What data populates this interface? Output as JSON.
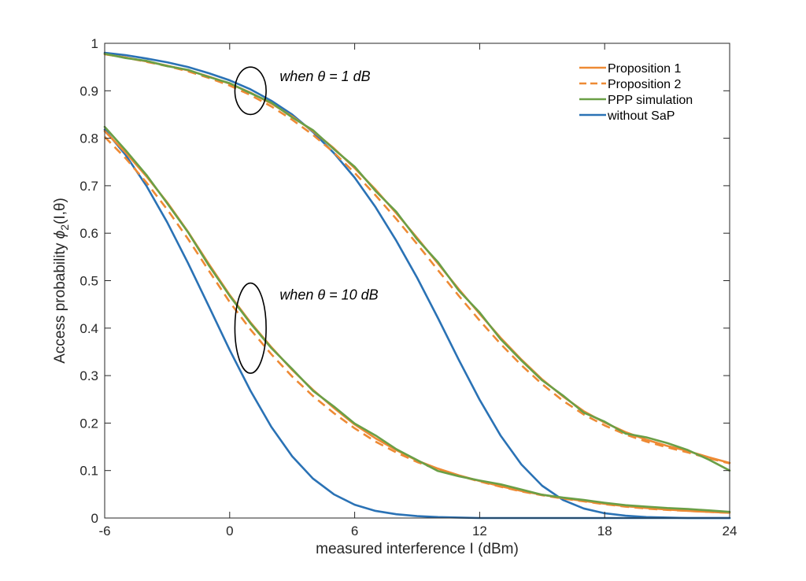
{
  "chart_data": {
    "type": "line",
    "xlabel": "measured interference I (dBm)",
    "ylabel_parts": {
      "prefix": "Access probability ",
      "phi": "ϕ",
      "subscript": "2",
      "args": "(I,θ)"
    },
    "xlim": [
      -6,
      24
    ],
    "ylim": [
      0,
      1
    ],
    "xticks": [
      -6,
      0,
      6,
      12,
      18,
      24
    ],
    "xtick_labels": [
      "-6",
      "0",
      "6",
      "12",
      "18",
      "24"
    ],
    "yticks": [
      0,
      0.1,
      0.2,
      0.3,
      0.4,
      0.5,
      0.6,
      0.7,
      0.8,
      0.9,
      1
    ],
    "ytick_labels": [
      "0",
      "0.1",
      "0.2",
      "0.3",
      "0.4",
      "0.5",
      "0.6",
      "0.7",
      "0.8",
      "0.9",
      "1"
    ],
    "grid": false,
    "legend_position": "top-right",
    "legend": [
      {
        "label": "Proposition 1",
        "color": "#EE8A34",
        "dash": "solid"
      },
      {
        "label": "Proposition 2",
        "color": "#EE8A34",
        "dash": "dashed"
      },
      {
        "label": "PPP simulation",
        "color": "#6A9F46",
        "dash": "solid"
      },
      {
        "label": "without SaP",
        "color": "#2A72B5",
        "dash": "solid"
      }
    ],
    "annotations": [
      {
        "text": "when θ = 1 dB",
        "ellipse_center": [
          1,
          0.9
        ],
        "ellipse_rx": 0.75,
        "ellipse_ry": 0.05,
        "text_anchor": [
          2.4,
          0.93
        ]
      },
      {
        "text": "when θ = 10 dB",
        "ellipse_center": [
          1,
          0.4
        ],
        "ellipse_rx": 0.75,
        "ellipse_ry": 0.095,
        "text_anchor": [
          2.4,
          0.47
        ]
      }
    ],
    "series": [
      {
        "group": "theta_1dB",
        "style": "Proposition 1",
        "x": [
          -6,
          -5,
          -4,
          -3,
          -2,
          -1,
          0,
          1,
          2,
          3,
          4,
          5,
          6,
          7,
          8,
          9,
          10,
          11,
          12,
          13,
          14,
          15,
          16,
          17,
          18,
          19,
          20,
          21,
          22,
          23,
          24
        ],
        "y": [
          0.977,
          0.97,
          0.962,
          0.953,
          0.943,
          0.93,
          0.915,
          0.896,
          0.873,
          0.846,
          0.815,
          0.779,
          0.737,
          0.692,
          0.642,
          0.59,
          0.536,
          0.482,
          0.43,
          0.38,
          0.334,
          0.292,
          0.256,
          0.225,
          0.201,
          0.181,
          0.165,
          0.152,
          0.141,
          0.128,
          0.116
        ]
      },
      {
        "group": "theta_1dB",
        "style": "Proposition 2",
        "x": [
          -6,
          -5,
          -4,
          -3,
          -2,
          -1,
          0,
          1,
          2,
          3,
          4,
          5,
          6,
          7,
          8,
          9,
          10,
          11,
          12,
          13,
          14,
          15,
          16,
          17,
          18,
          19,
          20,
          21,
          22,
          23,
          24
        ],
        "y": [
          0.977,
          0.97,
          0.961,
          0.952,
          0.941,
          0.927,
          0.911,
          0.891,
          0.867,
          0.839,
          0.807,
          0.77,
          0.727,
          0.68,
          0.63,
          0.577,
          0.522,
          0.468,
          0.416,
          0.367,
          0.322,
          0.282,
          0.247,
          0.218,
          0.195,
          0.176,
          0.161,
          0.149,
          0.138,
          0.126,
          0.115
        ]
      },
      {
        "group": "theta_1dB",
        "style": "PPP simulation",
        "x": [
          -6,
          -5,
          -4,
          -3,
          -2,
          -1,
          0,
          1,
          2,
          3,
          4,
          5,
          6,
          7,
          8,
          9,
          10,
          11,
          12,
          13,
          14,
          15,
          16,
          17,
          18,
          19,
          20,
          21,
          22,
          23,
          24
        ],
        "y": [
          0.978,
          0.969,
          0.963,
          0.952,
          0.944,
          0.929,
          0.916,
          0.895,
          0.875,
          0.844,
          0.817,
          0.777,
          0.74,
          0.689,
          0.645,
          0.587,
          0.539,
          0.479,
          0.433,
          0.377,
          0.332,
          0.29,
          0.258,
          0.222,
          0.203,
          0.178,
          0.17,
          0.158,
          0.143,
          0.123,
          0.1
        ]
      },
      {
        "group": "theta_1dB",
        "style": "without SaP",
        "x": [
          -6,
          -5,
          -4,
          -3,
          -2,
          -1,
          0,
          1,
          2,
          3,
          4,
          5,
          6,
          7,
          8,
          9,
          10,
          11,
          12,
          13,
          14,
          15,
          16,
          17,
          18,
          19,
          20,
          21,
          22,
          23,
          24
        ],
        "y": [
          0.98,
          0.975,
          0.968,
          0.96,
          0.95,
          0.937,
          0.922,
          0.903,
          0.879,
          0.85,
          0.813,
          0.769,
          0.717,
          0.655,
          0.584,
          0.506,
          0.421,
          0.333,
          0.249,
          0.174,
          0.113,
          0.068,
          0.038,
          0.02,
          0.01,
          0.005,
          0.002,
          0.001,
          0.0,
          0.0,
          0.0
        ]
      },
      {
        "group": "theta_10dB",
        "style": "Proposition 1",
        "x": [
          -6,
          -5,
          -4,
          -3,
          -2,
          -1,
          0,
          1,
          2,
          3,
          4,
          5,
          6,
          7,
          8,
          9,
          10,
          11,
          12,
          13,
          14,
          15,
          16,
          17,
          18,
          19,
          20,
          21,
          22,
          23,
          24
        ],
        "y": [
          0.815,
          0.77,
          0.72,
          0.665,
          0.603,
          0.535,
          0.47,
          0.412,
          0.36,
          0.312,
          0.27,
          0.232,
          0.197,
          0.168,
          0.143,
          0.121,
          0.104,
          0.09,
          0.078,
          0.067,
          0.057,
          0.049,
          0.042,
          0.036,
          0.03,
          0.025,
          0.021,
          0.018,
          0.015,
          0.013,
          0.011
        ]
      },
      {
        "group": "theta_10dB",
        "style": "Proposition 2",
        "x": [
          -6,
          -5,
          -4,
          -3,
          -2,
          -1,
          0,
          1,
          2,
          3,
          4,
          5,
          6,
          7,
          8,
          9,
          10,
          11,
          12,
          13,
          14,
          15,
          16,
          17,
          18,
          19,
          20,
          21,
          22,
          23,
          24
        ],
        "y": [
          0.803,
          0.758,
          0.707,
          0.65,
          0.588,
          0.521,
          0.455,
          0.397,
          0.345,
          0.298,
          0.257,
          0.221,
          0.189,
          0.161,
          0.138,
          0.118,
          0.102,
          0.089,
          0.077,
          0.066,
          0.056,
          0.048,
          0.041,
          0.035,
          0.029,
          0.024,
          0.02,
          0.017,
          0.015,
          0.013,
          0.011
        ]
      },
      {
        "group": "theta_10dB",
        "style": "PPP simulation",
        "x": [
          -6,
          -5,
          -4,
          -3,
          -2,
          -1,
          0,
          1,
          2,
          3,
          4,
          5,
          6,
          7,
          8,
          9,
          10,
          11,
          12,
          13,
          14,
          15,
          16,
          17,
          18,
          19,
          20,
          21,
          22,
          23,
          24
        ],
        "y": [
          0.824,
          0.775,
          0.723,
          0.663,
          0.602,
          0.532,
          0.468,
          0.41,
          0.358,
          0.314,
          0.268,
          0.235,
          0.199,
          0.174,
          0.145,
          0.122,
          0.099,
          0.088,
          0.079,
          0.071,
          0.06,
          0.049,
          0.043,
          0.038,
          0.032,
          0.027,
          0.024,
          0.021,
          0.019,
          0.016,
          0.013
        ]
      },
      {
        "group": "theta_10dB",
        "style": "without SaP",
        "x": [
          -6,
          -5,
          -4,
          -3,
          -2,
          -1,
          0,
          1,
          2,
          3,
          4,
          5,
          6,
          7,
          8,
          9,
          10,
          11,
          12,
          13,
          14,
          15,
          16,
          17,
          18,
          19,
          20,
          21,
          22,
          23,
          24
        ],
        "y": [
          0.818,
          0.765,
          0.7,
          0.623,
          0.537,
          0.446,
          0.354,
          0.268,
          0.192,
          0.13,
          0.083,
          0.05,
          0.028,
          0.015,
          0.008,
          0.004,
          0.002,
          0.001,
          0.0,
          0.0,
          0.0,
          0.0,
          0.0,
          0.0,
          0.0,
          0.0,
          0.0,
          0.0,
          0.0,
          0.0,
          0.0
        ]
      }
    ]
  }
}
